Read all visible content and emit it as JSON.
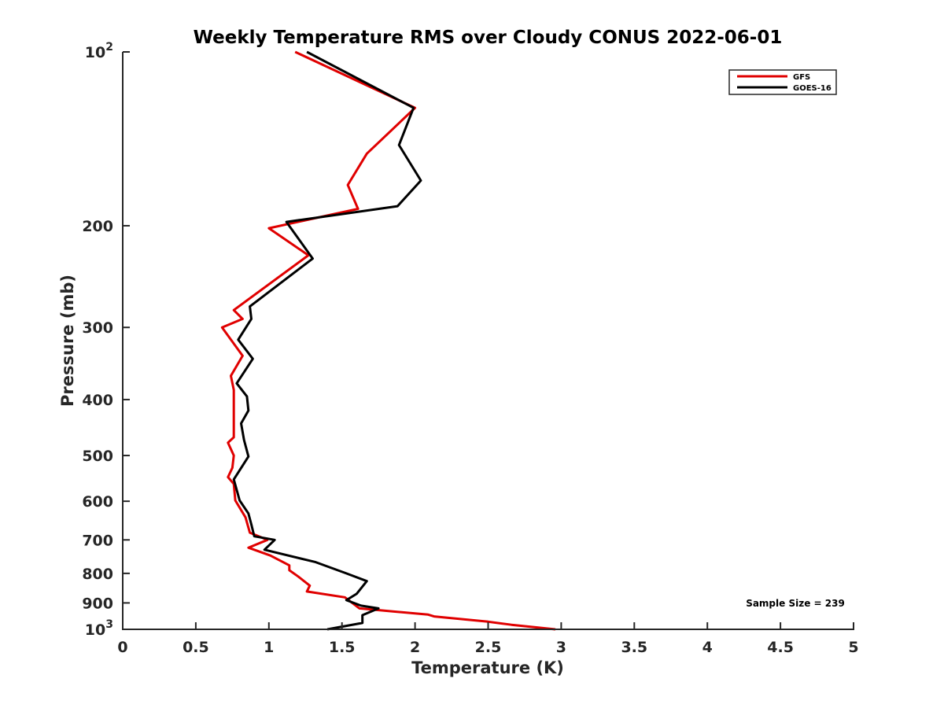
{
  "chart_data": {
    "type": "line",
    "title": "Weekly Temperature RMS over Cloudy CONUS 2022-06-01",
    "xlabel": "Temperature (K)",
    "ylabel": "Pressure (mb)",
    "xlim": [
      0,
      5
    ],
    "ylim": [
      100,
      1000
    ],
    "yscale": "log",
    "y_reversed": true,
    "grid": false,
    "legend_position": "top-right",
    "x_ticks": [
      {
        "value": 0,
        "label": "0"
      },
      {
        "value": 0.5,
        "label": "0.5"
      },
      {
        "value": 1,
        "label": "1"
      },
      {
        "value": 1.5,
        "label": "1.5"
      },
      {
        "value": 2,
        "label": "2"
      },
      {
        "value": 2.5,
        "label": "2.5"
      },
      {
        "value": 3,
        "label": "3"
      },
      {
        "value": 3.5,
        "label": "3.5"
      },
      {
        "value": 4,
        "label": "4"
      },
      {
        "value": 4.5,
        "label": "4.5"
      },
      {
        "value": 5,
        "label": "5"
      }
    ],
    "y_ticks": [
      {
        "value": 100,
        "label": "10",
        "exponent": "2"
      },
      {
        "value": 200,
        "label": "200"
      },
      {
        "value": 300,
        "label": "300"
      },
      {
        "value": 400,
        "label": "400"
      },
      {
        "value": 500,
        "label": "500"
      },
      {
        "value": 600,
        "label": "600"
      },
      {
        "value": 700,
        "label": "700"
      },
      {
        "value": 800,
        "label": "800"
      },
      {
        "value": 900,
        "label": "900"
      },
      {
        "value": 1000,
        "label": "10",
        "exponent": "3"
      }
    ],
    "series": [
      {
        "name": "GFS",
        "color": "#e00000",
        "points": [
          [
            1.18,
            100
          ],
          [
            2.0,
            125
          ],
          [
            1.67,
            150
          ],
          [
            1.54,
            170
          ],
          [
            1.61,
            187
          ],
          [
            1.0,
            202
          ],
          [
            1.27,
            225
          ],
          [
            0.76,
            280
          ],
          [
            0.82,
            290
          ],
          [
            0.68,
            300
          ],
          [
            0.82,
            336
          ],
          [
            0.74,
            364
          ],
          [
            0.76,
            385
          ],
          [
            0.76,
            465
          ],
          [
            0.72,
            475
          ],
          [
            0.76,
            500
          ],
          [
            0.75,
            525
          ],
          [
            0.72,
            545
          ],
          [
            0.76,
            560
          ],
          [
            0.77,
            598
          ],
          [
            0.84,
            640
          ],
          [
            0.87,
            680
          ],
          [
            0.99,
            700
          ],
          [
            0.86,
            722
          ],
          [
            1.01,
            745
          ],
          [
            1.14,
            775
          ],
          [
            1.14,
            790
          ],
          [
            1.2,
            810
          ],
          [
            1.28,
            840
          ],
          [
            1.26,
            860
          ],
          [
            1.52,
            880
          ],
          [
            1.62,
            920
          ],
          [
            2.09,
            943
          ],
          [
            2.13,
            950
          ],
          [
            2.5,
            970
          ],
          [
            2.66,
            982
          ],
          [
            2.96,
            1000
          ]
        ]
      },
      {
        "name": "GOES-16",
        "color": "#000000",
        "points": [
          [
            1.26,
            100
          ],
          [
            1.99,
            125
          ],
          [
            1.89,
            145
          ],
          [
            2.04,
            167
          ],
          [
            1.88,
            185
          ],
          [
            1.12,
            197
          ],
          [
            1.3,
            228
          ],
          [
            0.87,
            276
          ],
          [
            0.88,
            290
          ],
          [
            0.79,
            315
          ],
          [
            0.89,
            340
          ],
          [
            0.78,
            375
          ],
          [
            0.85,
            395
          ],
          [
            0.86,
            418
          ],
          [
            0.81,
            440
          ],
          [
            0.83,
            470
          ],
          [
            0.86,
            502
          ],
          [
            0.76,
            550
          ],
          [
            0.8,
            598
          ],
          [
            0.86,
            630
          ],
          [
            0.88,
            658
          ],
          [
            0.9,
            690
          ],
          [
            1.04,
            700
          ],
          [
            0.97,
            728
          ],
          [
            1.32,
            765
          ],
          [
            1.53,
            800
          ],
          [
            1.67,
            825
          ],
          [
            1.6,
            868
          ],
          [
            1.53,
            890
          ],
          [
            1.63,
            910
          ],
          [
            1.75,
            920
          ],
          [
            1.64,
            945
          ],
          [
            1.64,
            975
          ],
          [
            1.4,
            1000
          ]
        ]
      }
    ],
    "annotation": "Sample Size = 239"
  }
}
